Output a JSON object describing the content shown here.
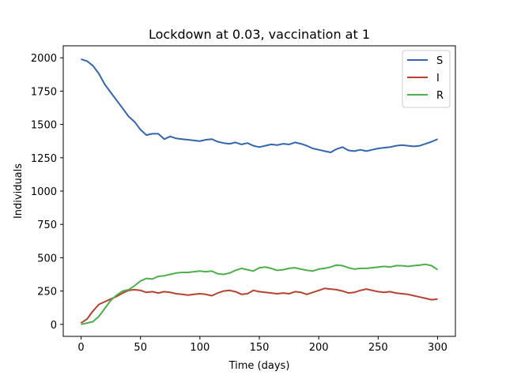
{
  "chart_data": {
    "type": "line",
    "title": "Lockdown at 0.03, vaccination at 1",
    "xlabel": "Time (days)",
    "ylabel": "Individuals",
    "xlim": [
      -15,
      315
    ],
    "ylim": [
      -90,
      2090
    ],
    "xticks": [
      0,
      50,
      100,
      150,
      200,
      250,
      300
    ],
    "yticks": [
      0,
      250,
      500,
      750,
      1000,
      1250,
      1500,
      1750,
      2000
    ],
    "grid": false,
    "legend_position": "top-right",
    "x": [
      0,
      5,
      10,
      15,
      20,
      25,
      30,
      35,
      40,
      45,
      50,
      55,
      60,
      65,
      70,
      75,
      80,
      85,
      90,
      95,
      100,
      105,
      110,
      115,
      120,
      125,
      130,
      135,
      140,
      145,
      150,
      155,
      160,
      165,
      170,
      175,
      180,
      185,
      190,
      195,
      200,
      205,
      210,
      215,
      220,
      225,
      230,
      235,
      240,
      245,
      250,
      255,
      260,
      265,
      270,
      275,
      280,
      285,
      290,
      295,
      300
    ],
    "series": [
      {
        "name": "S",
        "color": "#3465b0",
        "values": [
          1990,
          1975,
          1940,
          1880,
          1800,
          1740,
          1680,
          1620,
          1560,
          1520,
          1460,
          1420,
          1430,
          1430,
          1390,
          1410,
          1395,
          1390,
          1385,
          1380,
          1375,
          1385,
          1390,
          1370,
          1360,
          1355,
          1365,
          1350,
          1360,
          1340,
          1330,
          1340,
          1350,
          1345,
          1355,
          1350,
          1365,
          1355,
          1340,
          1320,
          1310,
          1300,
          1290,
          1315,
          1330,
          1305,
          1300,
          1310,
          1300,
          1310,
          1320,
          1325,
          1330,
          1340,
          1345,
          1340,
          1335,
          1340,
          1355,
          1370,
          1390
        ]
      },
      {
        "name": "I",
        "color": "#b5432f",
        "values": [
          10,
          40,
          100,
          150,
          170,
          190,
          210,
          235,
          255,
          260,
          255,
          240,
          245,
          235,
          245,
          240,
          230,
          225,
          220,
          225,
          230,
          225,
          215,
          235,
          250,
          255,
          245,
          225,
          230,
          255,
          245,
          240,
          235,
          230,
          235,
          230,
          245,
          240,
          225,
          240,
          255,
          270,
          265,
          260,
          250,
          235,
          240,
          255,
          265,
          255,
          245,
          240,
          245,
          235,
          230,
          225,
          215,
          205,
          195,
          185,
          190
        ]
      },
      {
        "name": "R",
        "color": "#4daf4a",
        "values": [
          0,
          10,
          20,
          60,
          120,
          180,
          220,
          250,
          260,
          290,
          325,
          345,
          340,
          360,
          365,
          375,
          385,
          390,
          390,
          395,
          400,
          395,
          400,
          380,
          375,
          385,
          405,
          420,
          410,
          400,
          425,
          430,
          420,
          405,
          410,
          420,
          425,
          415,
          405,
          400,
          415,
          420,
          430,
          445,
          440,
          425,
          415,
          420,
          420,
          425,
          430,
          435,
          430,
          440,
          440,
          435,
          440,
          445,
          450,
          440,
          410
        ]
      }
    ]
  }
}
